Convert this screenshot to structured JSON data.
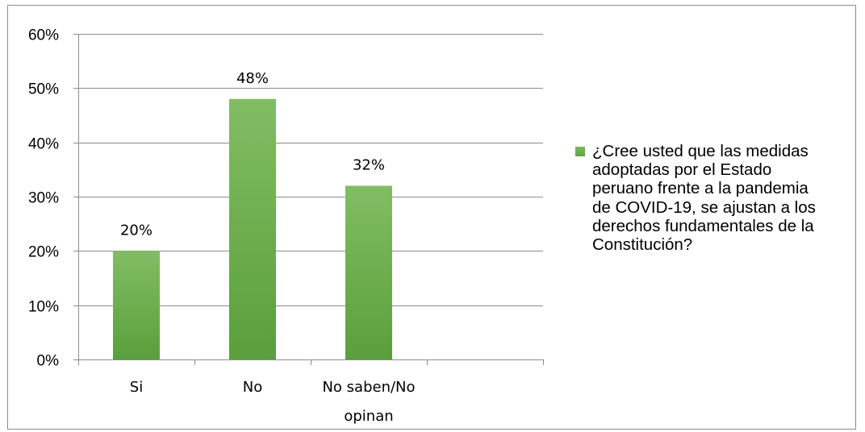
{
  "chart_data": {
    "type": "bar",
    "categories": [
      "Si",
      "No",
      "No saben/No opinan"
    ],
    "category_lines": [
      [
        "Si"
      ],
      [
        "No"
      ],
      [
        "No saben/No",
        "opinan"
      ]
    ],
    "series": [
      {
        "name": "¿Cree usted que las medidas adoptadas por el Estado peruano frente a la pandemia de COVID-19, se ajustan a los derechos fundamentales de la Constitución?",
        "values": [
          20,
          48,
          32
        ],
        "labels": [
          "20%",
          "48%",
          "32%"
        ]
      }
    ],
    "ylim": [
      0,
      60
    ],
    "yticks": [
      0,
      10,
      20,
      30,
      40,
      50,
      60
    ],
    "ytick_labels": [
      "0%",
      "10%",
      "20%",
      "30%",
      "40%",
      "50%",
      "60%"
    ],
    "x_slots": 4,
    "grid": true,
    "legend_position": "right",
    "bar_color": "#6aaf4a",
    "title": "",
    "xlabel": "",
    "ylabel": ""
  }
}
